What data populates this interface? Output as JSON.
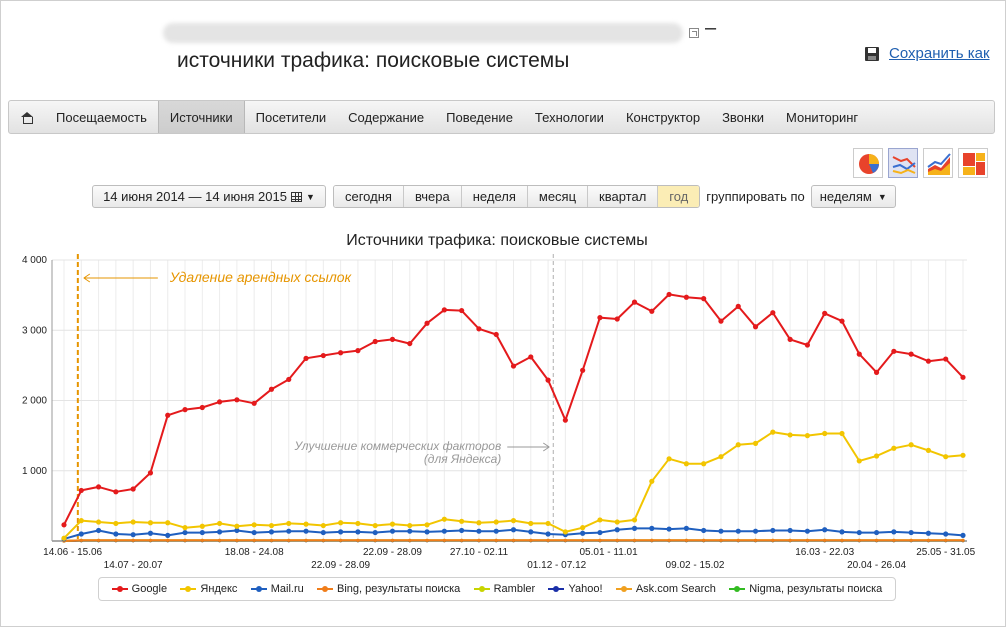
{
  "header": {
    "title_suffix": "–",
    "page_title": "источники трафика: поисковые системы",
    "save_label": "Сохранить как"
  },
  "nav": {
    "items": [
      "Посещаемость",
      "Источники",
      "Посетители",
      "Содержание",
      "Поведение",
      "Технологии",
      "Конструктор",
      "Звонки",
      "Мониторинг"
    ],
    "active": "Источники"
  },
  "chart_type_icons": [
    "pie-chart-icon",
    "line-chart-icon",
    "area-chart-icon",
    "treemap-icon"
  ],
  "controls": {
    "date_range": "14 июня 2014 — 14 июня 2015",
    "periods": [
      "сегодня",
      "вчера",
      "неделя",
      "месяц",
      "квартал",
      "год"
    ],
    "active_period": "год",
    "group_label": "группировать по",
    "group_value": "неделям"
  },
  "chart_data": {
    "type": "line",
    "title": "Источники трафика: поисковые системы",
    "ylim": [
      0,
      4000
    ],
    "yticks": [
      0,
      1000,
      2000,
      3000,
      4000
    ],
    "ytick_labels": [
      "",
      "1 000",
      "2 000",
      "3 000",
      "4 000"
    ],
    "weeks": 53,
    "x_labels_row1": [
      {
        "i": 0.5,
        "label": "14.06 - 15.06"
      },
      {
        "i": 11,
        "label": "18.08 - 24.08"
      },
      {
        "i": 19,
        "label": "22.09 - 28.09"
      },
      {
        "i": 24,
        "label": "27.10 - 02.11"
      },
      {
        "i": 31.5,
        "label": "05.01 - 11.01"
      },
      {
        "i": 44,
        "label": "16.03 - 22.03"
      },
      {
        "i": 51,
        "label": "25.05 - 31.05"
      }
    ],
    "x_labels_row2": [
      {
        "i": 4,
        "label": "14.07 - 20.07"
      },
      {
        "i": 16,
        "label": "22.09 - 28.09"
      },
      {
        "i": 28.5,
        "label": "01.12 - 07.12"
      },
      {
        "i": 36.5,
        "label": "09.02 - 15.02"
      },
      {
        "i": 47,
        "label": "20.04 - 26.04"
      }
    ],
    "annotations": [
      {
        "text": "Удаление арендных ссылок",
        "i": 0.8,
        "color": "#e69500"
      },
      {
        "text": "Улучшение коммерческих факторов",
        "text2": "(для Яндекса)",
        "i": 28.3,
        "color": "#aaaaaa"
      }
    ],
    "series": [
      {
        "name": "Google",
        "color": "#e41a1c",
        "values": [
          230,
          720,
          770,
          700,
          740,
          970,
          1790,
          1870,
          1900,
          1980,
          2010,
          1960,
          2160,
          2300,
          2600,
          2640,
          2680,
          2710,
          2840,
          2870,
          2810,
          3100,
          3290,
          3280,
          3020,
          2940,
          2490,
          2620,
          2290,
          1720,
          2430,
          3180,
          3160,
          3400,
          3270,
          3510,
          3470,
          3450,
          3130,
          3340,
          3050,
          3250,
          2870,
          2790,
          3240,
          3130,
          2660,
          2400,
          2700,
          2660,
          2560,
          2590,
          2330
        ]
      },
      {
        "name": "Яндекс",
        "color": "#f2c500",
        "values": [
          40,
          290,
          270,
          250,
          270,
          260,
          260,
          190,
          210,
          250,
          210,
          230,
          220,
          250,
          240,
          220,
          260,
          250,
          220,
          240,
          220,
          230,
          310,
          280,
          260,
          270,
          290,
          250,
          250,
          130,
          190,
          300,
          270,
          300,
          850,
          1170,
          1100,
          1100,
          1200,
          1370,
          1390,
          1550,
          1510,
          1500,
          1530,
          1530,
          1140,
          1210,
          1320,
          1370,
          1290,
          1200,
          1220
        ]
      },
      {
        "name": "Mail.ru",
        "color": "#1f5fbf",
        "values": [
          30,
          100,
          150,
          100,
          90,
          110,
          80,
          120,
          120,
          130,
          150,
          120,
          130,
          140,
          140,
          120,
          130,
          130,
          120,
          140,
          140,
          130,
          140,
          150,
          140,
          140,
          160,
          130,
          100,
          90,
          110,
          120,
          160,
          180,
          180,
          170,
          180,
          150,
          140,
          140,
          140,
          150,
          150,
          140,
          160,
          130,
          120,
          120,
          130,
          120,
          110,
          100,
          80
        ]
      },
      {
        "name": "Bing, результаты поиска",
        "color": "#f07d1a",
        "values": [
          0,
          10,
          10,
          10,
          10,
          10,
          10,
          10,
          10,
          10,
          10,
          10,
          10,
          10,
          10,
          10,
          10,
          10,
          10,
          10,
          10,
          10,
          10,
          10,
          10,
          10,
          10,
          10,
          10,
          10,
          10,
          10,
          10,
          10,
          10,
          10,
          10,
          10,
          10,
          10,
          10,
          10,
          10,
          10,
          10,
          10,
          10,
          10,
          10,
          10,
          10,
          10,
          10
        ]
      },
      {
        "name": "Rambler",
        "color": "#c8d400",
        "values": [
          0,
          10,
          10,
          10,
          10,
          10,
          10,
          10,
          10,
          10,
          10,
          10,
          10,
          10,
          10,
          10,
          10,
          10,
          10,
          10,
          10,
          10,
          10,
          10,
          10,
          10,
          10,
          10,
          10,
          10,
          10,
          10,
          10,
          10,
          10,
          10,
          10,
          10,
          10,
          10,
          10,
          10,
          10,
          10,
          10,
          10,
          10,
          10,
          10,
          10,
          10,
          10,
          10
        ]
      },
      {
        "name": "Yahoo!",
        "color": "#1a2fa8",
        "values": [
          0,
          5,
          5,
          5,
          5,
          5,
          5,
          5,
          5,
          5,
          5,
          5,
          5,
          5,
          5,
          5,
          5,
          5,
          5,
          5,
          5,
          5,
          5,
          5,
          5,
          5,
          5,
          5,
          5,
          5,
          5,
          5,
          5,
          5,
          5,
          5,
          5,
          5,
          5,
          5,
          5,
          5,
          5,
          5,
          5,
          5,
          5,
          5,
          5,
          5,
          5,
          5,
          5
        ]
      },
      {
        "name": "Ask.com Search",
        "color": "#f0a020",
        "values": [
          0,
          5,
          5,
          5,
          5,
          5,
          5,
          5,
          5,
          5,
          5,
          5,
          5,
          5,
          5,
          5,
          5,
          5,
          5,
          5,
          5,
          5,
          5,
          5,
          5,
          5,
          5,
          5,
          5,
          5,
          5,
          5,
          5,
          5,
          5,
          5,
          5,
          5,
          5,
          5,
          5,
          5,
          5,
          5,
          5,
          5,
          5,
          5,
          5,
          5,
          5,
          5,
          5
        ]
      },
      {
        "name": "Nigma, результаты поиска",
        "color": "#33bb22",
        "values": [
          0,
          5,
          5,
          5,
          5,
          5,
          5,
          5,
          5,
          5,
          5,
          5,
          5,
          5,
          5,
          5,
          5,
          5,
          5,
          5,
          5,
          5,
          5,
          5,
          5,
          5,
          5,
          5,
          5,
          5,
          5,
          5,
          5,
          5,
          5,
          5,
          5,
          5,
          5,
          5,
          5,
          5,
          5,
          5,
          5,
          5,
          5,
          5,
          5,
          5,
          5,
          5,
          5
        ]
      }
    ]
  }
}
